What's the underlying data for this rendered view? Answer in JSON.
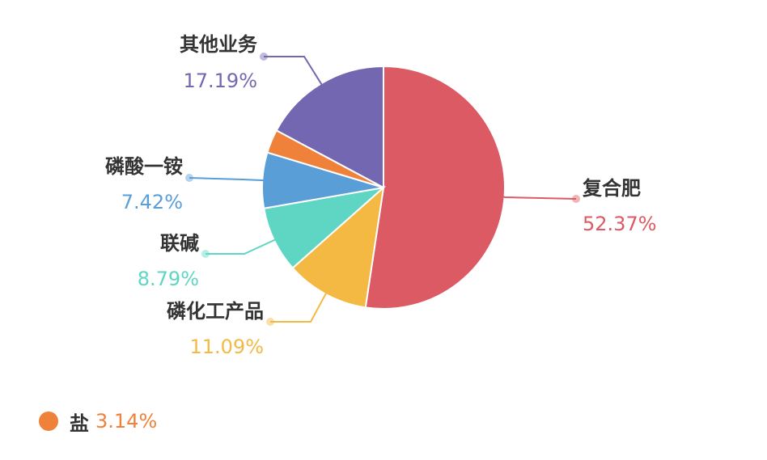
{
  "chart_data": {
    "type": "pie",
    "slices": [
      {
        "name": "复合肥",
        "value": 52.37,
        "label": "52.37%",
        "color": "#dc5a63"
      },
      {
        "name": "磷化工产品",
        "value": 11.09,
        "label": "11.09%",
        "color": "#f4b942"
      },
      {
        "name": "联碱",
        "value": 8.79,
        "label": "8.79%",
        "color": "#5ed6c3"
      },
      {
        "name": "磷酸一铵",
        "value": 7.42,
        "label": "7.42%",
        "color": "#5a9ed8"
      },
      {
        "name": "盐",
        "value": 3.14,
        "label": "3.14%",
        "color": "#f0813a"
      },
      {
        "name": "其他业务",
        "value": 17.19,
        "label": "17.19%",
        "color": "#7467b1"
      }
    ]
  }
}
